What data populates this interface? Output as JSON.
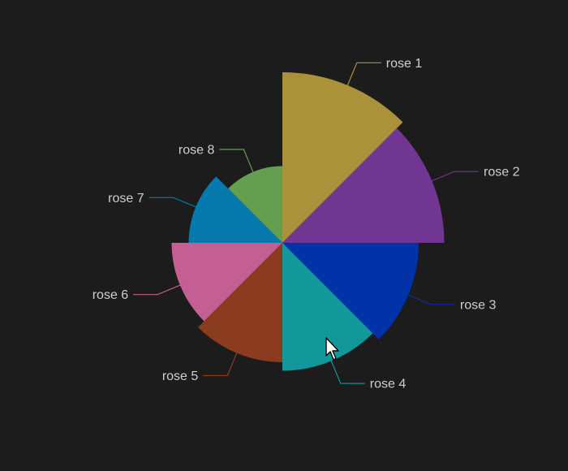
{
  "chart_data": {
    "type": "pie",
    "subtype": "nightingale-rose",
    "title": "",
    "legend": "none",
    "categories": [
      "rose 1",
      "rose 2",
      "rose 3",
      "rose 4",
      "rose 5",
      "rose 6",
      "rose 7",
      "rose 8"
    ],
    "values": [
      40,
      38,
      32,
      30,
      28,
      26,
      22,
      18
    ],
    "colors": [
      "#ab913a",
      "#713692",
      "#0132a8",
      "#12979a",
      "#8b3c20",
      "#c35f92",
      "#0679ad",
      "#639f4e"
    ],
    "start_angle_deg": 0,
    "direction": "clockwise",
    "label_position": "outside-with-leader-lines"
  },
  "background_color": "#1c1c1c",
  "cursor_icon": "arrow-cursor-icon"
}
